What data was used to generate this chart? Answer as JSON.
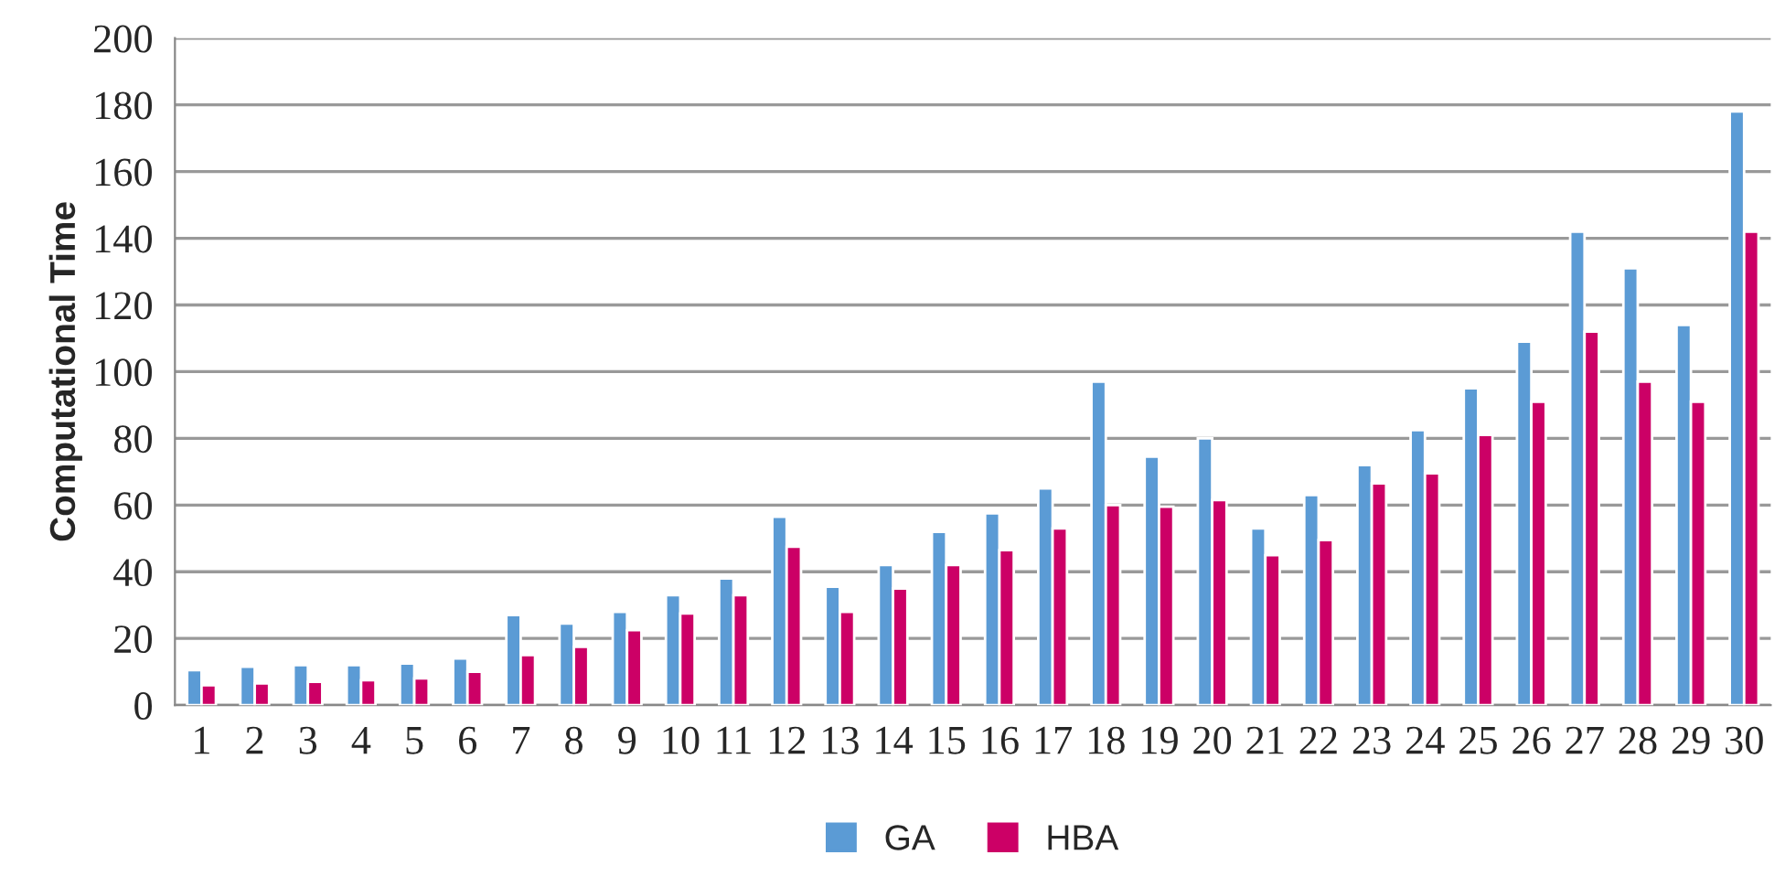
{
  "chart_data": {
    "type": "bar",
    "ylabel": "Computational Time",
    "categories": [
      "1",
      "2",
      "3",
      "4",
      "5",
      "6",
      "7",
      "8",
      "9",
      "10",
      "11",
      "12",
      "13",
      "14",
      "15",
      "16",
      "17",
      "18",
      "19",
      "20",
      "21",
      "22",
      "23",
      "24",
      "25",
      "26",
      "27",
      "28",
      "29",
      "30"
    ],
    "series": [
      {
        "name": "GA",
        "color": "#5b9bd5",
        "values": [
          10.5,
          11.5,
          12,
          12,
          12.5,
          14,
          27,
          24.5,
          28,
          33,
          38,
          56.5,
          35.5,
          42,
          52,
          57.5,
          65,
          97,
          74.5,
          80,
          53,
          63,
          72,
          82.5,
          95,
          109,
          142,
          131,
          114,
          178
        ]
      },
      {
        "name": "HBA",
        "color": "#cc0066",
        "values": [
          6,
          6.5,
          7,
          7.5,
          8,
          10,
          15,
          17.5,
          22.5,
          27.5,
          33,
          47.5,
          28,
          35,
          42,
          46.5,
          53,
          60,
          59.5,
          61.5,
          45,
          49.5,
          66.5,
          69.5,
          81,
          91,
          112,
          97,
          91,
          142
        ]
      }
    ],
    "ylim": [
      0,
      200
    ],
    "yticks": [
      0,
      20,
      40,
      60,
      80,
      100,
      120,
      140,
      160,
      180,
      200
    ],
    "grid": "y",
    "legend": "bottom"
  }
}
